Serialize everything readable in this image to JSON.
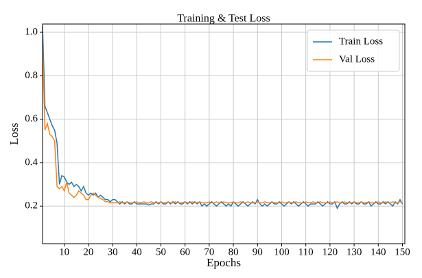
{
  "chart_data": {
    "type": "line",
    "title": "Training & Test Loss",
    "xlabel": "Epochs",
    "ylabel": "Loss",
    "x": [
      1,
      2,
      3,
      4,
      5,
      6,
      7,
      8,
      9,
      10,
      11,
      12,
      13,
      14,
      15,
      16,
      17,
      18,
      19,
      20,
      21,
      22,
      23,
      24,
      25,
      26,
      27,
      28,
      29,
      30,
      31,
      32,
      33,
      34,
      35,
      36,
      37,
      38,
      39,
      40,
      41,
      42,
      43,
      44,
      45,
      46,
      47,
      48,
      49,
      50,
      51,
      52,
      53,
      54,
      55,
      56,
      57,
      58,
      59,
      60,
      61,
      62,
      63,
      64,
      65,
      66,
      67,
      68,
      69,
      70,
      71,
      72,
      73,
      74,
      75,
      76,
      77,
      78,
      79,
      80,
      81,
      82,
      83,
      84,
      85,
      86,
      87,
      88,
      89,
      90,
      91,
      92,
      93,
      94,
      95,
      96,
      97,
      98,
      99,
      100,
      101,
      102,
      103,
      104,
      105,
      106,
      107,
      108,
      109,
      110,
      111,
      112,
      113,
      114,
      115,
      116,
      117,
      118,
      119,
      120,
      121,
      122,
      123,
      124,
      125,
      126,
      127,
      128,
      129,
      130,
      131,
      132,
      133,
      134,
      135,
      136,
      137,
      138,
      139,
      140,
      141,
      142,
      143,
      144,
      145,
      146,
      147,
      148,
      149,
      150
    ],
    "series": [
      {
        "name": "Train Loss",
        "color": "#1f77b4",
        "values": [
          1.03,
          0.66,
          0.63,
          0.6,
          0.57,
          0.55,
          0.49,
          0.3,
          0.34,
          0.335,
          0.31,
          0.3,
          0.31,
          0.29,
          0.3,
          0.29,
          0.27,
          0.29,
          0.26,
          0.25,
          0.26,
          0.25,
          0.26,
          0.24,
          0.25,
          0.24,
          0.23,
          0.23,
          0.22,
          0.23,
          0.23,
          0.22,
          0.21,
          0.22,
          0.21,
          0.22,
          0.21,
          0.21,
          0.22,
          0.21,
          0.21,
          0.21,
          0.21,
          0.21,
          0.205,
          0.21,
          0.21,
          0.22,
          0.21,
          0.22,
          0.21,
          0.21,
          0.22,
          0.21,
          0.22,
          0.21,
          0.22,
          0.21,
          0.21,
          0.22,
          0.21,
          0.22,
          0.21,
          0.22,
          0.21,
          0.22,
          0.2,
          0.21,
          0.2,
          0.21,
          0.22,
          0.21,
          0.2,
          0.21,
          0.22,
          0.21,
          0.2,
          0.21,
          0.2,
          0.22,
          0.21,
          0.2,
          0.21,
          0.22,
          0.21,
          0.2,
          0.21,
          0.22,
          0.21,
          0.23,
          0.21,
          0.2,
          0.21,
          0.2,
          0.21,
          0.22,
          0.21,
          0.21,
          0.22,
          0.21,
          0.2,
          0.21,
          0.22,
          0.21,
          0.22,
          0.21,
          0.2,
          0.21,
          0.22,
          0.21,
          0.2,
          0.21,
          0.21,
          0.21,
          0.22,
          0.21,
          0.2,
          0.21,
          0.22,
          0.21,
          0.21,
          0.22,
          0.19,
          0.21,
          0.22,
          0.21,
          0.21,
          0.22,
          0.21,
          0.22,
          0.21,
          0.21,
          0.22,
          0.21,
          0.21,
          0.22,
          0.2,
          0.21,
          0.22,
          0.21,
          0.21,
          0.22,
          0.21,
          0.22,
          0.21,
          0.2,
          0.22,
          0.21,
          0.23,
          0.21
        ]
      },
      {
        "name": "Val Loss",
        "color": "#ff7f0e",
        "values": [
          0.95,
          0.55,
          0.58,
          0.53,
          0.52,
          0.5,
          0.29,
          0.28,
          0.29,
          0.27,
          0.31,
          0.26,
          0.25,
          0.24,
          0.25,
          0.27,
          0.26,
          0.25,
          0.23,
          0.23,
          0.25,
          0.26,
          0.25,
          0.24,
          0.235,
          0.23,
          0.22,
          0.22,
          0.215,
          0.215,
          0.215,
          0.215,
          0.22,
          0.215,
          0.215,
          0.22,
          0.215,
          0.215,
          0.215,
          0.22,
          0.215,
          0.215,
          0.22,
          0.215,
          0.215,
          0.22,
          0.215,
          0.215,
          0.215,
          0.22,
          0.215,
          0.215,
          0.22,
          0.215,
          0.215,
          0.22,
          0.215,
          0.215,
          0.215,
          0.22,
          0.215,
          0.215,
          0.22,
          0.215,
          0.215,
          0.22,
          0.215,
          0.215,
          0.215,
          0.22,
          0.215,
          0.215,
          0.22,
          0.215,
          0.215,
          0.22,
          0.215,
          0.215,
          0.215,
          0.22,
          0.215,
          0.215,
          0.22,
          0.215,
          0.215,
          0.22,
          0.215,
          0.215,
          0.215,
          0.22,
          0.215,
          0.215,
          0.22,
          0.215,
          0.215,
          0.22,
          0.215,
          0.215,
          0.215,
          0.22,
          0.215,
          0.215,
          0.22,
          0.215,
          0.215,
          0.22,
          0.215,
          0.215,
          0.215,
          0.22,
          0.215,
          0.215,
          0.22,
          0.215,
          0.215,
          0.22,
          0.215,
          0.215,
          0.215,
          0.22,
          0.215,
          0.215,
          0.22,
          0.215,
          0.215,
          0.22,
          0.215,
          0.215,
          0.215,
          0.22,
          0.215,
          0.215,
          0.22,
          0.215,
          0.215,
          0.22,
          0.215,
          0.215,
          0.215,
          0.22,
          0.215,
          0.215,
          0.22,
          0.215,
          0.215,
          0.22,
          0.215,
          0.215,
          0.22,
          0.215
        ]
      }
    ],
    "xlim": [
      1,
      151
    ],
    "xticks": [
      10,
      20,
      30,
      40,
      50,
      60,
      70,
      80,
      90,
      100,
      110,
      120,
      130,
      140,
      150
    ],
    "ylim": [
      0.027,
      1.038
    ],
    "yticks": [
      0.2,
      0.4,
      0.6,
      0.8,
      {
        "value": 1.0,
        "label": "1.0"
      }
    ],
    "grid": true,
    "legend": "upper right"
  }
}
